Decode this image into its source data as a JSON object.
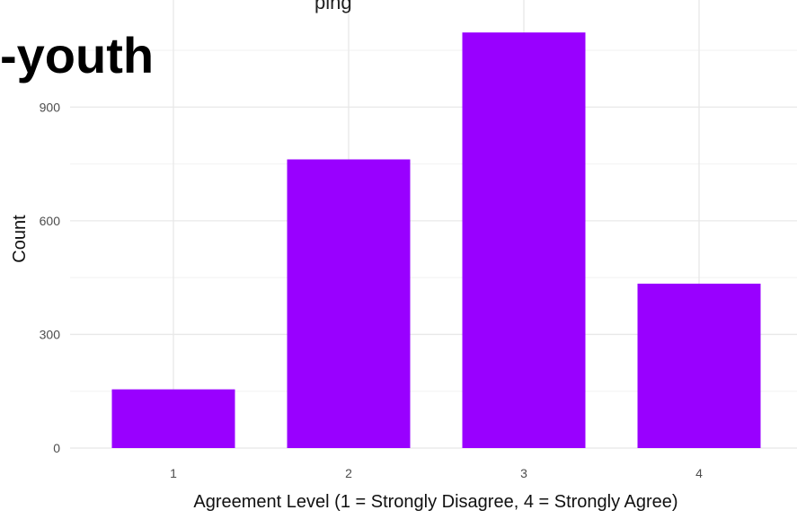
{
  "title_fragment": "-youth",
  "subtitle_fragment": "ping",
  "colors": {
    "bar": "#9900ff",
    "grid_major": "#e8e8e8",
    "grid_minor": "#f2f2f2",
    "tick_text": "#4d4d4d",
    "axis_label": "#111111"
  },
  "chart_data": {
    "type": "bar",
    "categories": [
      "1",
      "2",
      "3",
      "4"
    ],
    "values": [
      155,
      762,
      1097,
      434
    ],
    "title": "",
    "xlabel": "Agreement Level (1 = Strongly Disagree, 4 = Strongly Agree)",
    "ylabel": "Count",
    "ylim": [
      0,
      1140
    ],
    "yticks": [
      0,
      300,
      600,
      900
    ],
    "grid": true,
    "legend": "none"
  }
}
